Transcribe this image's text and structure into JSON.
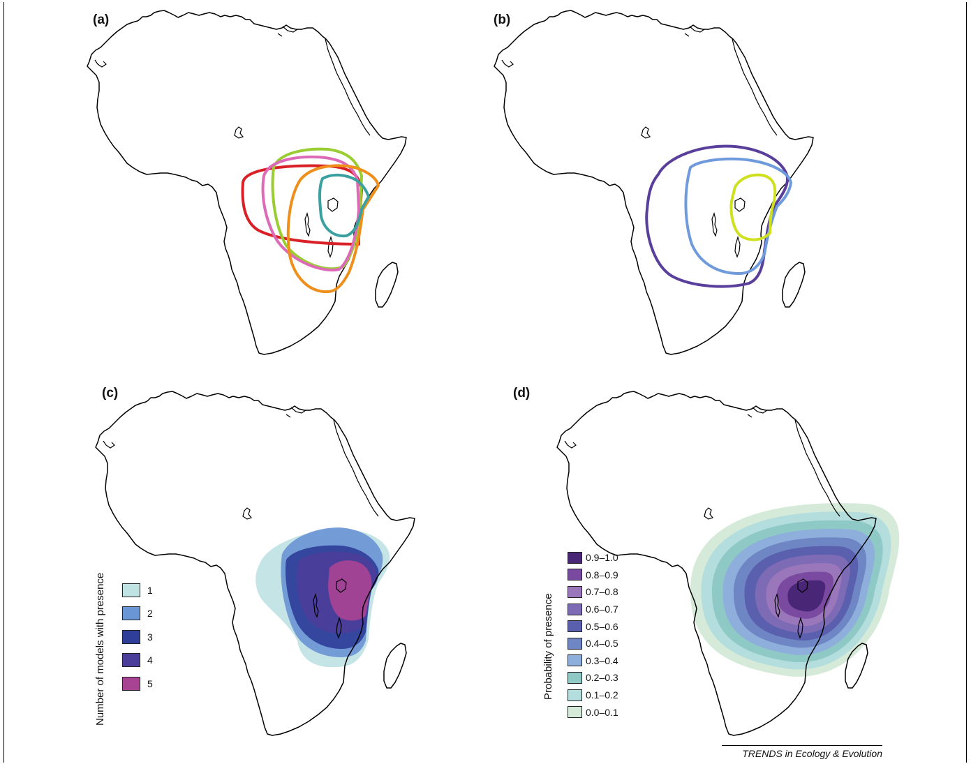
{
  "panels": [
    {
      "id": "a",
      "label": "(a)"
    },
    {
      "id": "b",
      "label": "(b)"
    },
    {
      "id": "c",
      "label": "(c)"
    },
    {
      "id": "d",
      "label": "(d)"
    }
  ],
  "panel_a": {
    "outline_colors": [
      "#d92027",
      "#9acd32",
      "#dc6ab7",
      "#ee8f1c",
      "#3aa0a0"
    ]
  },
  "panel_b": {
    "outline_colors": [
      "#5a3e9b",
      "#6f9bdc",
      "#cfe01f"
    ]
  },
  "legend_c": {
    "title": "Number of models with presence",
    "items": [
      {
        "label": "1",
        "color": "#bfe2e3"
      },
      {
        "label": "2",
        "color": "#6b96d6"
      },
      {
        "label": "3",
        "color": "#2f3f99"
      },
      {
        "label": "4",
        "color": "#4b3e9a"
      },
      {
        "label": "5",
        "color": "#a84394"
      }
    ]
  },
  "legend_d": {
    "title": "Probability of presence",
    "items": [
      {
        "label": "0.9–1.0",
        "color": "#4a2677"
      },
      {
        "label": "0.8–0.9",
        "color": "#7a4aa0"
      },
      {
        "label": "0.7–0.8",
        "color": "#9a76bb"
      },
      {
        "label": "0.6–0.7",
        "color": "#7e6bb5"
      },
      {
        "label": "0.5–0.6",
        "color": "#5a5fae"
      },
      {
        "label": "0.4–0.5",
        "color": "#6f86c5"
      },
      {
        "label": "0.3–0.4",
        "color": "#8eaedb"
      },
      {
        "label": "0.2–0.3",
        "color": "#8fc9c5"
      },
      {
        "label": "0.1–0.2",
        "color": "#b4dede"
      },
      {
        "label": "0.0–0.1",
        "color": "#d5ead8"
      }
    ]
  },
  "credit": "TRENDS in Ecology & Evolution"
}
